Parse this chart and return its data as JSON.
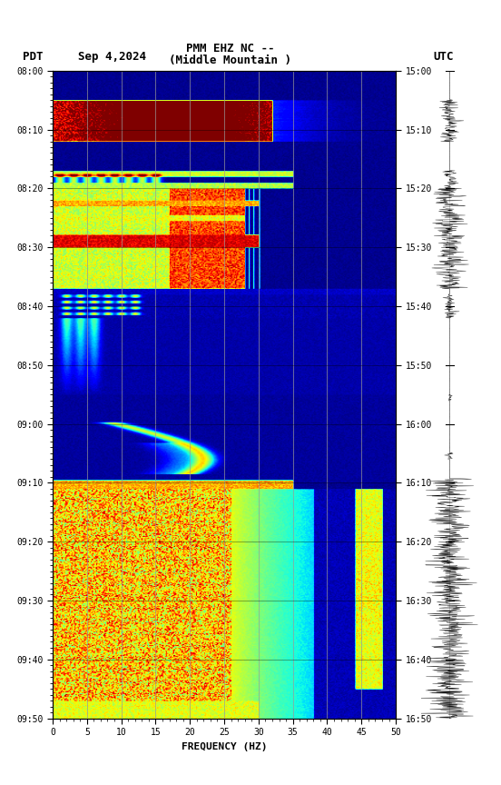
{
  "title_line1": "PMM EHZ NC --",
  "title_line2": "(Middle Mountain )",
  "date_label": "Sep 4,2024",
  "left_tz": "PDT",
  "right_tz": "UTC",
  "left_times": [
    "08:00",
    "08:10",
    "08:20",
    "08:30",
    "08:40",
    "08:50",
    "09:00",
    "09:10",
    "09:20",
    "09:30",
    "09:40",
    "09:50"
  ],
  "right_times": [
    "15:00",
    "15:10",
    "15:20",
    "15:30",
    "15:40",
    "15:50",
    "16:00",
    "16:10",
    "16:20",
    "16:30",
    "16:40",
    "16:50"
  ],
  "freq_min": 0,
  "freq_max": 50,
  "freq_ticks": [
    0,
    5,
    10,
    15,
    20,
    25,
    30,
    35,
    40,
    45,
    50
  ],
  "xlabel": "FREQUENCY (HZ)",
  "colormap": "jet",
  "n_freq": 300,
  "n_time": 660,
  "vertical_line_freqs": [
    5,
    10,
    15,
    20,
    25,
    30,
    35,
    40,
    45
  ]
}
